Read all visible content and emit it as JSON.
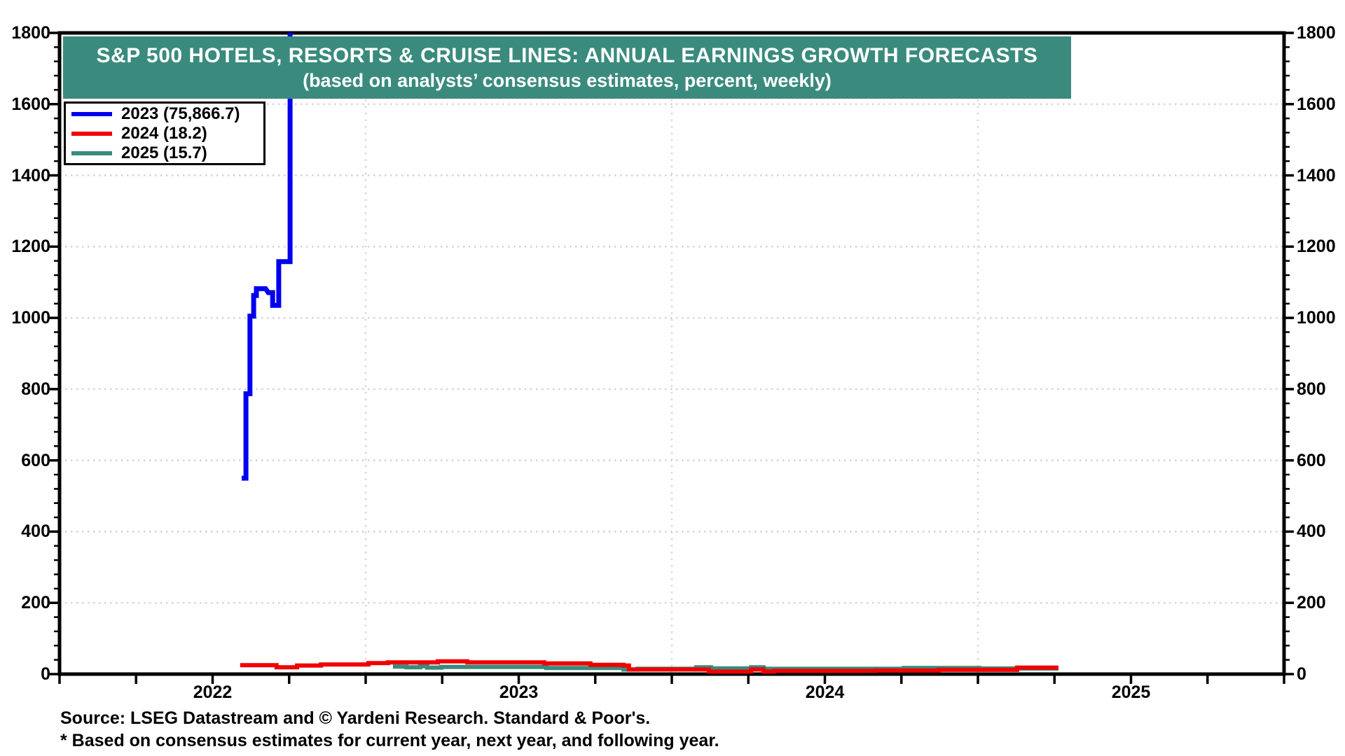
{
  "banner": {
    "title": "S&P 500 HOTELS, RESORTS & CRUISE LINES: ANNUAL EARNINGS GROWTH FORECASTS",
    "subtitle": "(based on analysts’ consensus estimates, percent, weekly)",
    "bg_color": "#3a8b7d",
    "text_color": "#ffffff"
  },
  "legend": {
    "items": [
      {
        "label": "2023 (75,866.7)",
        "color": "#0000ee"
      },
      {
        "label": "2024 (18.2)",
        "color": "#f00000"
      },
      {
        "label": "2025 (15.7)",
        "color": "#3a8b7d"
      }
    ]
  },
  "footer": {
    "source": "Source: LSEG Datastream and © Yardeni Research. Standard & Poor's.",
    "footnote": "* Based on consensus estimates for current year, next year, and following year."
  },
  "chart_data": {
    "type": "line",
    "title": "S&P 500 Hotels, Resorts & Cruise Lines: Annual Earnings Growth Forecasts",
    "xlabel": "",
    "ylabel": "percent",
    "x_range": [
      2022,
      2026
    ],
    "y_range": [
      0,
      1800
    ],
    "y_tick_step": 200,
    "y_minor_step": 40,
    "x_tick_step": 0.25,
    "x_year_labels": [
      "2022",
      "2023",
      "2024",
      "2025"
    ],
    "grid_years": [
      2023,
      2024,
      2025
    ],
    "grid_on": true,
    "legend_position": "top-left",
    "colors": {
      "frame": "#000000",
      "h_grid": "#d4d4d4",
      "v_grid": "#d8d8d8"
    },
    "series": [
      {
        "name": "2023",
        "final_value": "75,866.7",
        "color": "#0000ee",
        "width": 7,
        "points": [
          [
            2022.595,
            550
          ],
          [
            2022.609,
            550
          ],
          [
            2022.609,
            787
          ],
          [
            2022.622,
            787
          ],
          [
            2022.622,
            1005
          ],
          [
            2022.634,
            1005
          ],
          [
            2022.634,
            1063
          ],
          [
            2022.643,
            1063
          ],
          [
            2022.643,
            1082
          ],
          [
            2022.673,
            1082
          ],
          [
            2022.682,
            1071
          ],
          [
            2022.696,
            1071
          ],
          [
            2022.696,
            1035
          ],
          [
            2022.716,
            1035
          ],
          [
            2022.716,
            1158
          ],
          [
            2022.753,
            1158
          ],
          [
            2022.753,
            76000
          ]
        ]
      },
      {
        "name": "2025",
        "final_value": "15.7",
        "color": "#3a8b7d",
        "width": 6,
        "points": [
          [
            2023.089,
            21
          ],
          [
            2023.133,
            21
          ],
          [
            2023.133,
            19
          ],
          [
            2023.178,
            19
          ],
          [
            2023.178,
            22
          ],
          [
            2023.201,
            22
          ],
          [
            2023.201,
            18
          ],
          [
            2023.247,
            18
          ],
          [
            2023.247,
            20
          ],
          [
            2023.59,
            20
          ],
          [
            2023.59,
            17
          ],
          [
            2023.842,
            17
          ],
          [
            2023.842,
            13
          ],
          [
            2023.888,
            13
          ],
          [
            2023.888,
            15
          ],
          [
            2024.08,
            15
          ],
          [
            2024.08,
            19
          ],
          [
            2024.128,
            19
          ],
          [
            2024.128,
            16
          ],
          [
            2024.259,
            16
          ],
          [
            2024.259,
            19
          ],
          [
            2024.3,
            19
          ],
          [
            2024.3,
            15
          ],
          [
            2024.758,
            15
          ],
          [
            2024.758,
            17
          ],
          [
            2025.005,
            17
          ],
          [
            2025.005,
            15.7
          ],
          [
            2025.263,
            15.7
          ]
        ]
      },
      {
        "name": "2024",
        "final_value": "18.2",
        "color": "#f00000",
        "width": 6,
        "points": [
          [
            2022.59,
            25
          ],
          [
            2022.709,
            25
          ],
          [
            2022.709,
            19
          ],
          [
            2022.776,
            19
          ],
          [
            2022.776,
            24
          ],
          [
            2022.854,
            24
          ],
          [
            2022.854,
            27
          ],
          [
            2023.009,
            27
          ],
          [
            2023.009,
            31
          ],
          [
            2023.073,
            31
          ],
          [
            2023.073,
            33
          ],
          [
            2023.236,
            33
          ],
          [
            2023.236,
            36
          ],
          [
            2023.332,
            36
          ],
          [
            2023.332,
            33
          ],
          [
            2023.583,
            33
          ],
          [
            2023.583,
            30
          ],
          [
            2023.734,
            30
          ],
          [
            2023.734,
            26
          ],
          [
            2023.842,
            26
          ],
          [
            2023.842,
            24
          ],
          [
            2023.86,
            24
          ],
          [
            2023.86,
            13
          ],
          [
            2024.121,
            13
          ],
          [
            2024.121,
            7
          ],
          [
            2024.259,
            7
          ],
          [
            2024.259,
            13
          ],
          [
            2024.3,
            13
          ],
          [
            2024.3,
            7
          ],
          [
            2024.334,
            7
          ],
          [
            2024.334,
            9
          ],
          [
            2024.666,
            9
          ],
          [
            2024.666,
            10
          ],
          [
            2024.872,
            10
          ],
          [
            2024.872,
            12
          ],
          [
            2025.128,
            12
          ],
          [
            2025.128,
            18.2
          ],
          [
            2025.263,
            18.2
          ]
        ]
      }
    ]
  }
}
